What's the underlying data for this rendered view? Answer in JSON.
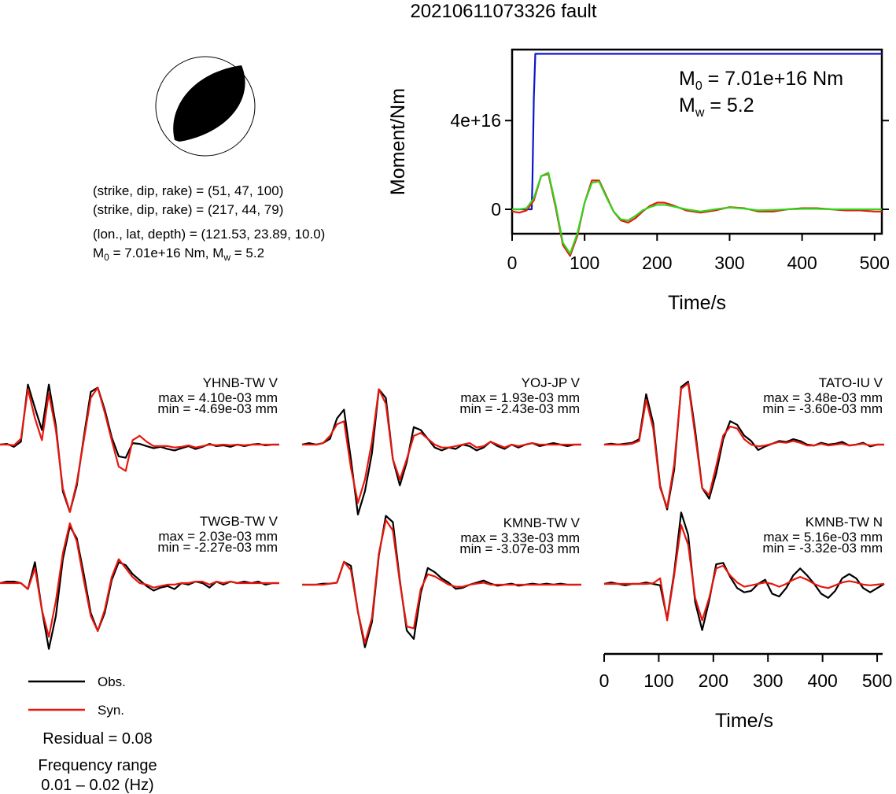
{
  "figure": {
    "title": "20210611073326 fault",
    "mechanism": {
      "nodal_plane_1": "(strike, dip, rake) = (51, 47, 100)",
      "nodal_plane_2": "(strike, dip, rake) = (217, 44, 79)",
      "location": "(lon., lat, depth) = (121.53, 23.89, 10.0)",
      "moment_line": "M0 = 7.01e+16 Nm, Mw = 5.2"
    },
    "legend": {
      "obs_label": "Obs.",
      "syn_label": "Syn.",
      "obs_color": "#000000",
      "syn_color": "#e8160c"
    },
    "residual": "Residual = 0.08",
    "frequency_title": "Frequency range",
    "frequency_value": "0.01 – 0.02 (Hz)"
  },
  "chart_data": [
    {
      "type": "line",
      "name": "moment function",
      "title": "",
      "xlabel": "Time/s",
      "ylabel": "Moment/Nm",
      "xlim": [
        0,
        510
      ],
      "ylim": [
        -1.1e+16,
        7.2e+16
      ],
      "x_ticks": [
        "0",
        "100",
        "200",
        "300",
        "400",
        "500"
      ],
      "y_ticks": [
        "0",
        "4e+16"
      ],
      "annotation_m0": "7.01e+16 Nm",
      "annotation_mw": "5.2",
      "series": [
        {
          "color": "#0a16cc",
          "x": [
            0,
            27,
            28,
            30,
            32,
            510
          ],
          "y": [
            0,
            0,
            1.2e+16,
            5e+16,
            7.01e+16,
            7.01e+16
          ]
        },
        {
          "color": "#e8160c",
          "x": [
            0,
            10,
            20,
            30,
            40,
            50,
            60,
            70,
            80,
            90,
            100,
            110,
            120,
            130,
            140,
            150,
            160,
            170,
            180,
            190,
            200,
            210,
            220,
            240,
            260,
            280,
            300,
            320,
            340,
            360,
            380,
            400,
            420,
            440,
            460,
            480,
            500,
            510
          ],
          "y": [
            -1000000000000000.0,
            -1500000000000000.0,
            -500000000000000.0,
            4000000000000000.0,
            1.5e+16,
            1.6e+16,
            1000000000000000.0,
            -1.6e+16,
            -2.1e+16,
            -1.2e+16,
            3000000000000000.0,
            1.3e+16,
            1.3e+16,
            6000000000000000.0,
            -1000000000000000.0,
            -5000000000000000.0,
            -6000000000000000.0,
            -4000000000000000.0,
            -1000000000000000.0,
            1500000000000000.0,
            3000000000000000.0,
            3000000000000000.0,
            2000000000000000.0,
            -500000000000000.0,
            -1500000000000000.0,
            -500000000000000.0,
            1000000000000000.0,
            500000000000000.0,
            -1000000000000000.0,
            -1000000000000000.0,
            0.0,
            500000000000000.0,
            500000000000000.0,
            0.0,
            -500000000000000.0,
            -500000000000000.0,
            -1000000000000000.0,
            -1000000000000000.0
          ]
        },
        {
          "color": "#2fd41b",
          "x": [
            0,
            10,
            20,
            30,
            40,
            50,
            60,
            70,
            80,
            90,
            100,
            110,
            120,
            130,
            140,
            150,
            160,
            170,
            180,
            190,
            200,
            210,
            220,
            240,
            260,
            280,
            300,
            320,
            340,
            360,
            380,
            400,
            420,
            440,
            460,
            480,
            500,
            510
          ],
          "y": [
            0,
            0,
            500000000000000.0,
            5000000000000000.0,
            1.5e+16,
            1.65e+16,
            2000000000000000.0,
            -1.5e+16,
            -2e+16,
            -1.1e+16,
            3000000000000000.0,
            1.2e+16,
            1.25e+16,
            5500000000000000.0,
            -1000000000000000.0,
            -4500000000000000.0,
            -5000000000000000.0,
            -3000000000000000.0,
            -500000000000000.0,
            1000000000000000.0,
            2000000000000000.0,
            2000000000000000.0,
            1500000000000000.0,
            0.0,
            -1000000000000000.0,
            0.0,
            800000000000000.0,
            300000000000000.0,
            -500000000000000.0,
            -300000000000000.0,
            0.0,
            200000000000000.0,
            200000000000000.0,
            0.0,
            0.0,
            0.0,
            0.0,
            0.0
          ]
        }
      ]
    },
    {
      "type": "line",
      "name": "waveform fits",
      "xlabel": "Time/s",
      "xlim": [
        0,
        510
      ],
      "x_ticks": [
        "0",
        "100",
        "200",
        "300",
        "400",
        "500"
      ],
      "stations": [
        {
          "station": "YHNB-TW V",
          "max": "max = 4.10e-03 mm",
          "min": "min = -4.69e-03 mm",
          "peak": 4.1,
          "trough": -4.69,
          "obs": [
            0,
            0.05,
            -0.15,
            0.2,
            4.1,
            2.5,
            1.0,
            4.1,
            1.3,
            -3.2,
            -4.6,
            -2.8,
            0.5,
            3.6,
            3.9,
            2.4,
            0.5,
            -0.8,
            -0.9,
            0.1,
            0.05,
            -0.1,
            -0.25,
            -0.15,
            -0.3,
            -0.4,
            -0.25,
            -0.1,
            -0.3,
            -0.15,
            0.05,
            -0.1,
            -0.05,
            -0.15,
            0.0,
            -0.1,
            0.0,
            0.05,
            -0.05,
            0.0,
            0.0
          ],
          "syn": [
            0,
            0,
            -0.05,
            0.4,
            3.8,
            1.8,
            0.3,
            3.5,
            1.0,
            -3.0,
            -4.6,
            -2.6,
            0.3,
            3.2,
            3.9,
            2.2,
            0.3,
            -1.5,
            -1.8,
            0.3,
            0.6,
            0.2,
            -0.1,
            -0.1,
            -0.1,
            -0.2,
            -0.15,
            -0.05,
            -0.2,
            -0.1,
            0.0,
            -0.05,
            0.0,
            -0.05,
            0.0,
            -0.05,
            0.0,
            0.0,
            0.0,
            0.0,
            0.0
          ]
        },
        {
          "station": "YOJ-JP V",
          "max": "max = 1.93e-03 mm",
          "min": "min = -2.43e-03 mm",
          "peak": 1.93,
          "trough": -2.43,
          "obs": [
            0,
            0.05,
            0.0,
            0.05,
            0.2,
            0.9,
            1.2,
            -0.5,
            -2.4,
            -1.6,
            -0.3,
            1.9,
            1.6,
            -0.5,
            -1.4,
            -0.6,
            0.6,
            0.5,
            0.2,
            -0.1,
            -0.2,
            -0.1,
            -0.15,
            0.0,
            -0.05,
            -0.2,
            -0.1,
            0.1,
            -0.05,
            -0.15,
            0.0,
            -0.1,
            0.0,
            0.05,
            -0.05,
            0.0,
            0.05,
            0.0,
            -0.05,
            0.0,
            0.0
          ],
          "syn": [
            0,
            0,
            0,
            0.05,
            0.3,
            0.7,
            0.8,
            -0.8,
            -2.0,
            -1.2,
            0.1,
            1.9,
            1.4,
            -0.5,
            -1.2,
            -0.5,
            0.3,
            0.4,
            0.2,
            0.0,
            -0.1,
            -0.1,
            -0.05,
            0.0,
            0.05,
            -0.1,
            -0.05,
            0.1,
            0.0,
            -0.1,
            0.0,
            -0.05,
            0.0,
            0.05,
            0.0,
            0.0,
            0.0,
            0.0,
            0.0,
            0.0,
            0.0
          ]
        },
        {
          "station": "TATO-IU V",
          "max": "max = 3.48e-03 mm",
          "min": "min = -3.60e-03 mm",
          "peak": 3.48,
          "trough": -3.6,
          "obs": [
            0,
            0.05,
            0.0,
            0.05,
            0.1,
            0.3,
            2.8,
            1.2,
            -2.3,
            -3.6,
            -1.4,
            3.2,
            3.5,
            0.8,
            -2.4,
            -3.0,
            -1.6,
            0.3,
            1.3,
            1.1,
            0.5,
            0.2,
            -0.3,
            -0.1,
            0.05,
            0.2,
            0.15,
            0.3,
            0.2,
            0.0,
            -0.05,
            0.1,
            0.0,
            0.05,
            0.15,
            -0.05,
            0.0,
            0.1,
            -0.1,
            0.0,
            0.0
          ],
          "syn": [
            0,
            0,
            0,
            0.0,
            0.05,
            0.2,
            2.5,
            0.9,
            -2.4,
            -3.5,
            -1.1,
            3.1,
            3.4,
            0.5,
            -2.4,
            -2.8,
            -1.2,
            0.5,
            1.0,
            0.9,
            0.3,
            0.0,
            -0.1,
            -0.05,
            0.05,
            0.15,
            0.1,
            0.2,
            0.1,
            -0.05,
            -0.05,
            0.05,
            -0.05,
            0.0,
            0.05,
            -0.05,
            0.0,
            0.05,
            -0.05,
            0.0,
            0.0
          ]
        },
        {
          "station": "TWGB-TW V",
          "max": "max = 2.03e-03 mm",
          "min": "min = -2.27e-03 mm",
          "peak": 2.03,
          "trough": -2.27,
          "obs": [
            0,
            0.05,
            0.05,
            0.0,
            -0.2,
            0.7,
            -0.9,
            -2.2,
            -1.1,
            0.8,
            1.9,
            1.5,
            0.3,
            -1.0,
            -1.6,
            -1.0,
            0.1,
            0.7,
            0.6,
            0.3,
            0.1,
            -0.1,
            -0.25,
            -0.15,
            -0.1,
            -0.2,
            0.0,
            -0.05,
            0.05,
            0.0,
            -0.15,
            0.05,
            -0.05,
            0.05,
            0.0,
            0.05,
            0.0,
            0.05,
            -0.05,
            0.0,
            0.0
          ],
          "syn": [
            0,
            0,
            0,
            0.0,
            -0.2,
            0.5,
            -0.9,
            -1.8,
            -0.6,
            1.0,
            2.0,
            1.4,
            0.1,
            -1.1,
            -1.6,
            -0.9,
            0.2,
            0.8,
            0.5,
            0.2,
            0.0,
            -0.05,
            -0.15,
            -0.1,
            -0.05,
            -0.05,
            0.0,
            0.0,
            0.05,
            0.05,
            -0.05,
            0.05,
            0.0,
            0.05,
            0.0,
            0.0,
            0.0,
            0.0,
            0.0,
            0.0,
            0.0
          ]
        },
        {
          "station": "KMNB-TW V",
          "max": "max = 3.33e-03 mm",
          "min": "min = -3.07e-03 mm",
          "peak": 3.33,
          "trough": -3.07,
          "obs": [
            0,
            0.0,
            0.0,
            0.05,
            0.05,
            0.1,
            1.1,
            0.9,
            -1.3,
            -3.0,
            -1.8,
            1.4,
            3.3,
            3.0,
            0.2,
            -2.2,
            -2.6,
            -0.4,
            0.8,
            0.6,
            0.3,
            0.1,
            -0.2,
            -0.15,
            0.0,
            0.1,
            0.2,
            0.05,
            -0.05,
            0.0,
            0.05,
            -0.05,
            0.0,
            0.05,
            0.0,
            0.05,
            0.0,
            0.05,
            0.0,
            0.0,
            0.0
          ],
          "syn": [
            0,
            0,
            0,
            0.0,
            0.05,
            0.1,
            1.1,
            0.7,
            -1.3,
            -2.8,
            -1.6,
            1.5,
            3.1,
            2.6,
            0.1,
            -2.0,
            -2.1,
            -0.2,
            0.5,
            0.4,
            0.2,
            0.0,
            -0.1,
            -0.1,
            0.0,
            0.05,
            0.1,
            0.0,
            0.0,
            0.0,
            0.0,
            0.0,
            0.0,
            0.0,
            0.0,
            0.0,
            0.0,
            0.0,
            0.0,
            0.0,
            0.0
          ]
        },
        {
          "station": "KMNB-TW N",
          "max": "max = 5.16e-03 mm",
          "min": "min = -3.32e-03 mm",
          "peak": 5.16,
          "trough": -3.32,
          "obs": [
            0,
            0.1,
            0.0,
            -0.1,
            0.0,
            0.0,
            0.1,
            0.0,
            -0.1,
            -2.5,
            0.8,
            5.1,
            3.5,
            -1.3,
            -3.3,
            -1.2,
            1.4,
            1.5,
            0.5,
            -0.3,
            -0.6,
            -0.5,
            0.0,
            0.3,
            -0.7,
            -0.9,
            -0.3,
            0.6,
            1.1,
            0.6,
            0.0,
            -0.7,
            -1.0,
            -0.5,
            0.4,
            0.7,
            0.4,
            -0.3,
            -0.6,
            -0.3,
            0.0
          ],
          "syn": [
            0,
            0,
            0,
            0,
            0.0,
            0.0,
            0.0,
            0.05,
            0.4,
            -2.6,
            0.6,
            4.2,
            2.8,
            -1.0,
            -2.6,
            -1.0,
            1.1,
            1.3,
            0.6,
            0.1,
            -0.2,
            -0.1,
            0.0,
            0.1,
            0.0,
            -0.2,
            0.0,
            0.3,
            0.5,
            0.3,
            0.0,
            -0.2,
            -0.3,
            -0.1,
            0.1,
            0.2,
            0.1,
            -0.05,
            -0.1,
            -0.05,
            0.0
          ]
        }
      ]
    }
  ]
}
